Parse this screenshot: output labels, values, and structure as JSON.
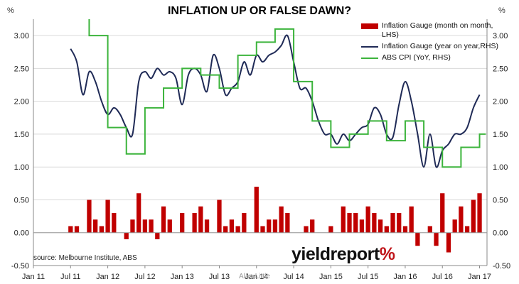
{
  "title": "INFLATION UP OR FALSE DAWN?",
  "left_unit": "%",
  "right_unit": "%",
  "source": "source: Melbourne Institute, ABS",
  "brand": {
    "text": "yieldreport",
    "symbol": "%"
  },
  "watermark": "Alan Little",
  "colors": {
    "bars": "#c00000",
    "mi_yoy": "#1f2a56",
    "abs_cpi": "#3cb43c",
    "grid": "#d9d9d9"
  },
  "chart_data": {
    "type": "bar",
    "title": "INFLATION UP OR FALSE DAWN?",
    "left_axis": {
      "ylim": [
        -0.5,
        3.25
      ],
      "ticks": [
        "-0.50",
        "0.00",
        "0.50",
        "1.00",
        "1.50",
        "2.00",
        "2.50",
        "3.00"
      ]
    },
    "right_axis": {
      "ylim": [
        -0.5,
        3.25
      ],
      "ticks": [
        "-0.50",
        "0.00",
        "0.50",
        "1.00",
        "1.50",
        "2.00",
        "2.50",
        "3.00"
      ]
    },
    "x_ticks": [
      "Jan 11",
      "Jul 11",
      "Jan 12",
      "Jul 12",
      "Jan 13",
      "Jul 13",
      "Jan 14",
      "Jul 14",
      "Jan 15",
      "Jul 15",
      "Jan 16",
      "Jul 16",
      "Jan 17"
    ],
    "legend": [
      "Inflation Gauge (month on month, LHS)",
      "Inflation Gauge (year on year,RHS)",
      "ABS CPI (YoY, RHS)"
    ],
    "grid": true,
    "series": [
      {
        "name": "Inflation Gauge (month on month, LHS)",
        "type": "bar",
        "x": [
          "Jul 11",
          "Aug 11",
          "Sep 11",
          "Oct 11",
          "Nov 11",
          "Dec 11",
          "Jan 12",
          "Feb 12",
          "Mar 12",
          "Apr 12",
          "May 12",
          "Jun 12",
          "Jul 12",
          "Aug 12",
          "Sep 12",
          "Oct 12",
          "Nov 12",
          "Dec 12",
          "Jan 13",
          "Feb 13",
          "Mar 13",
          "Apr 13",
          "May 13",
          "Jun 13",
          "Jul 13",
          "Aug 13",
          "Sep 13",
          "Oct 13",
          "Nov 13",
          "Dec 13",
          "Jan 14",
          "Feb 14",
          "Mar 14",
          "Apr 14",
          "May 14",
          "Jun 14",
          "Jul 14",
          "Aug 14",
          "Sep 14",
          "Oct 14",
          "Nov 14",
          "Dec 14",
          "Jan 15",
          "Feb 15",
          "Mar 15",
          "Apr 15",
          "May 15",
          "Jun 15",
          "Jul 15",
          "Aug 15",
          "Sep 15",
          "Oct 15",
          "Nov 15",
          "Dec 15",
          "Jan 16",
          "Feb 16",
          "Mar 16",
          "Apr 16",
          "May 16",
          "Jun 16",
          "Jul 16",
          "Aug 16",
          "Sep 16",
          "Oct 16",
          "Nov 16",
          "Dec 16",
          "Jan 17"
        ],
        "values": [
          0.1,
          0.1,
          0.0,
          0.5,
          0.2,
          0.1,
          0.5,
          0.3,
          0.0,
          -0.1,
          0.2,
          0.6,
          0.2,
          0.2,
          -0.1,
          0.4,
          0.2,
          0.0,
          0.3,
          0.0,
          0.3,
          0.4,
          0.2,
          0.0,
          0.5,
          0.1,
          0.2,
          0.1,
          0.3,
          0.0,
          0.7,
          0.1,
          0.2,
          0.2,
          0.4,
          0.3,
          0.0,
          0.0,
          0.1,
          0.2,
          0.0,
          0.0,
          0.1,
          0.0,
          0.4,
          0.3,
          0.3,
          0.2,
          0.4,
          0.3,
          0.2,
          0.1,
          0.3,
          0.3,
          0.1,
          0.4,
          -0.2,
          0.0,
          0.1,
          -0.2,
          0.6,
          -0.3,
          0.2,
          0.4,
          0.1,
          0.5,
          0.6
        ]
      },
      {
        "name": "Inflation Gauge (year on year,RHS)",
        "type": "line",
        "x": [
          "Jul 11",
          "Aug 11",
          "Sep 11",
          "Oct 11",
          "Nov 11",
          "Dec 11",
          "Jan 12",
          "Feb 12",
          "Mar 12",
          "Apr 12",
          "May 12",
          "Jun 12",
          "Jul 12",
          "Aug 12",
          "Sep 12",
          "Oct 12",
          "Nov 12",
          "Dec 12",
          "Jan 13",
          "Feb 13",
          "Mar 13",
          "Apr 13",
          "May 13",
          "Jun 13",
          "Jul 13",
          "Aug 13",
          "Sep 13",
          "Oct 13",
          "Nov 13",
          "Dec 13",
          "Jan 14",
          "Feb 14",
          "Mar 14",
          "Apr 14",
          "May 14",
          "Jun 14",
          "Jul 14",
          "Aug 14",
          "Sep 14",
          "Oct 14",
          "Nov 14",
          "Dec 14",
          "Jan 15",
          "Feb 15",
          "Mar 15",
          "Apr 15",
          "May 15",
          "Jun 15",
          "Jul 15",
          "Aug 15",
          "Sep 15",
          "Oct 15",
          "Nov 15",
          "Dec 15",
          "Jan 16",
          "Feb 16",
          "Mar 16",
          "Apr 16",
          "May 16",
          "Jun 16",
          "Jul 16",
          "Aug 16",
          "Sep 16",
          "Oct 16",
          "Nov 16",
          "Dec 16",
          "Jan 17"
        ],
        "values": [
          2.8,
          2.6,
          2.1,
          2.45,
          2.3,
          2.0,
          1.8,
          1.9,
          1.8,
          1.6,
          1.5,
          2.3,
          2.45,
          2.35,
          2.5,
          2.4,
          2.45,
          2.35,
          1.95,
          2.4,
          2.5,
          2.4,
          2.15,
          2.7,
          2.5,
          2.1,
          2.2,
          2.3,
          2.6,
          2.4,
          2.7,
          2.6,
          2.7,
          2.75,
          2.85,
          3.0,
          2.6,
          2.2,
          2.2,
          2.0,
          1.7,
          1.5,
          1.5,
          1.35,
          1.5,
          1.4,
          1.5,
          1.6,
          1.65,
          1.9,
          1.8,
          1.5,
          1.45,
          1.95,
          2.3,
          2.0,
          1.5,
          1.0,
          1.5,
          1.0,
          1.25,
          1.35,
          1.5,
          1.5,
          1.6,
          1.9,
          2.1
        ]
      },
      {
        "name": "ABS CPI (YoY, RHS)",
        "type": "line",
        "step": true,
        "x": [
          "Jul 11",
          "Oct 11",
          "Jan 12",
          "Apr 12",
          "Jul 12",
          "Oct 12",
          "Jan 13",
          "Apr 13",
          "Jul 13",
          "Oct 13",
          "Jan 14",
          "Apr 14",
          "Jul 14",
          "Oct 14",
          "Jan 15",
          "Apr 15",
          "Jul 15",
          "Oct 15",
          "Jan 16",
          "Apr 16",
          "Jul 16",
          "Oct 16",
          "Jan 17"
        ],
        "values": [
          3.5,
          3.0,
          1.6,
          1.2,
          1.9,
          2.2,
          2.5,
          2.4,
          2.2,
          2.7,
          2.9,
          3.1,
          2.3,
          1.7,
          1.3,
          1.5,
          1.7,
          1.4,
          1.7,
          1.3,
          1.0,
          1.3,
          1.5
        ]
      }
    ]
  }
}
